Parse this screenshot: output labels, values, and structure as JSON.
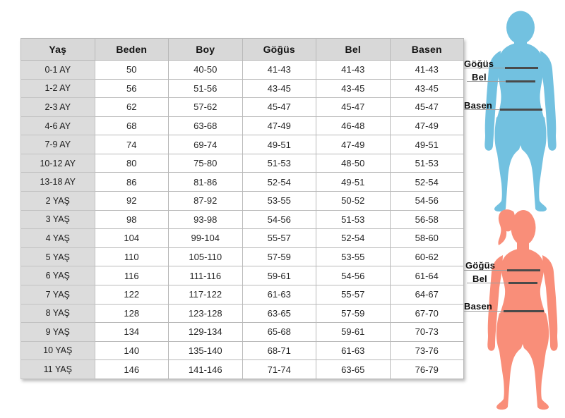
{
  "table": {
    "headers": [
      "Yaş",
      "Beden",
      "Boy",
      "Göğüs",
      "Bel",
      "Basen"
    ],
    "rows": [
      [
        "0-1 AY",
        "50",
        "40-50",
        "41-43",
        "41-43",
        "41-43"
      ],
      [
        "1-2 AY",
        "56",
        "51-56",
        "43-45",
        "43-45",
        "43-45"
      ],
      [
        "2-3 AY",
        "62",
        "57-62",
        "45-47",
        "45-47",
        "45-47"
      ],
      [
        "4-6 AY",
        "68",
        "63-68",
        "47-49",
        "46-48",
        "47-49"
      ],
      [
        "7-9 AY",
        "74",
        "69-74",
        "49-51",
        "47-49",
        "49-51"
      ],
      [
        "10-12 AY",
        "80",
        "75-80",
        "51-53",
        "48-50",
        "51-53"
      ],
      [
        "13-18 AY",
        "86",
        "81-86",
        "52-54",
        "49-51",
        "52-54"
      ],
      [
        "2 YAŞ",
        "92",
        "87-92",
        "53-55",
        "50-52",
        "54-56"
      ],
      [
        "3 YAŞ",
        "98",
        "93-98",
        "54-56",
        "51-53",
        "56-58"
      ],
      [
        "4 YAŞ",
        "104",
        "99-104",
        "55-57",
        "52-54",
        "58-60"
      ],
      [
        "5 YAŞ",
        "110",
        "105-110",
        "57-59",
        "53-55",
        "60-62"
      ],
      [
        "6 YAŞ",
        "116",
        "111-116",
        "59-61",
        "54-56",
        "61-64"
      ],
      [
        "7 YAŞ",
        "122",
        "117-122",
        "61-63",
        "55-57",
        "64-67"
      ],
      [
        "8 YAŞ",
        "128",
        "123-128",
        "63-65",
        "57-59",
        "67-70"
      ],
      [
        "9 YAŞ",
        "134",
        "129-134",
        "65-68",
        "59-61",
        "70-73"
      ],
      [
        "10 YAŞ",
        "140",
        "135-140",
        "68-71",
        "61-63",
        "73-76"
      ],
      [
        "11 YAŞ",
        "146",
        "141-146",
        "71-74",
        "63-65",
        "76-79"
      ]
    ]
  },
  "figures": {
    "child": {
      "color": "#72C1E0",
      "labels": {
        "chest": "Göğüs",
        "waist": "Bel",
        "hip": "Basen"
      }
    },
    "woman": {
      "color": "#F98E79",
      "labels": {
        "chest": "Göğüs",
        "waist": "Bel",
        "hip": "Basen"
      }
    }
  },
  "colors": {
    "header_bg": "#d8d8d8",
    "row_label_bg": "#dcdcdc",
    "cell_bg": "#ffffff",
    "border": "#b9b9b9",
    "measure_line": "#4a4a4a",
    "guide_line": "#9e9e9e",
    "text": "#1f1f1f"
  }
}
